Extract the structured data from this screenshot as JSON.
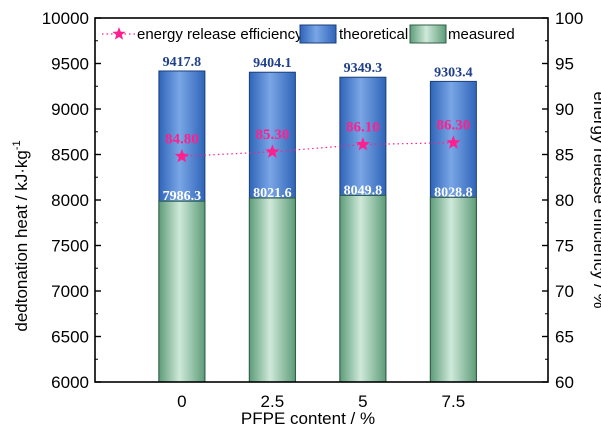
{
  "chart_data": {
    "type": "bar",
    "categories": [
      "0",
      "2.5",
      "5",
      "7.5"
    ],
    "series": [
      {
        "name": "measured",
        "kind": "bar-stack-bottom",
        "values": [
          7986.3,
          8021.6,
          8049.8,
          8028.8
        ],
        "color": "#6fae8b",
        "label_color": "#ffffff"
      },
      {
        "name": "theoretical",
        "kind": "bar-stack-top",
        "values": [
          9417.8,
          9404.1,
          9349.3,
          9303.4
        ],
        "color": "#3e78c8",
        "label_color": "#1f3f8a"
      },
      {
        "name": "energy release efficiency",
        "kind": "line-right-axis",
        "values": [
          84.8,
          85.3,
          86.1,
          86.3
        ],
        "labels": [
          "84.80",
          "85.30",
          "86.10",
          "86.30"
        ],
        "color": "#ff1f8e"
      }
    ],
    "xlabel": "PFPE content / %",
    "ylabel": "dedtonation heat / kJ·kg",
    "ylabel_superscript": "-1",
    "y2label": "energy release efficiency / %",
    "ylim": [
      6000,
      10000
    ],
    "y2lim": [
      60,
      100
    ],
    "yticks": [
      "6000",
      "6500",
      "7000",
      "7500",
      "8000",
      "8500",
      "9000",
      "9500",
      "10000"
    ],
    "y2ticks": [
      "60",
      "65",
      "70",
      "75",
      "80",
      "85",
      "90",
      "95",
      "100"
    ],
    "legend_labels": [
      "energy release efficiency",
      "theoretical",
      "measured"
    ],
    "legend_position": "top",
    "grid": false
  }
}
